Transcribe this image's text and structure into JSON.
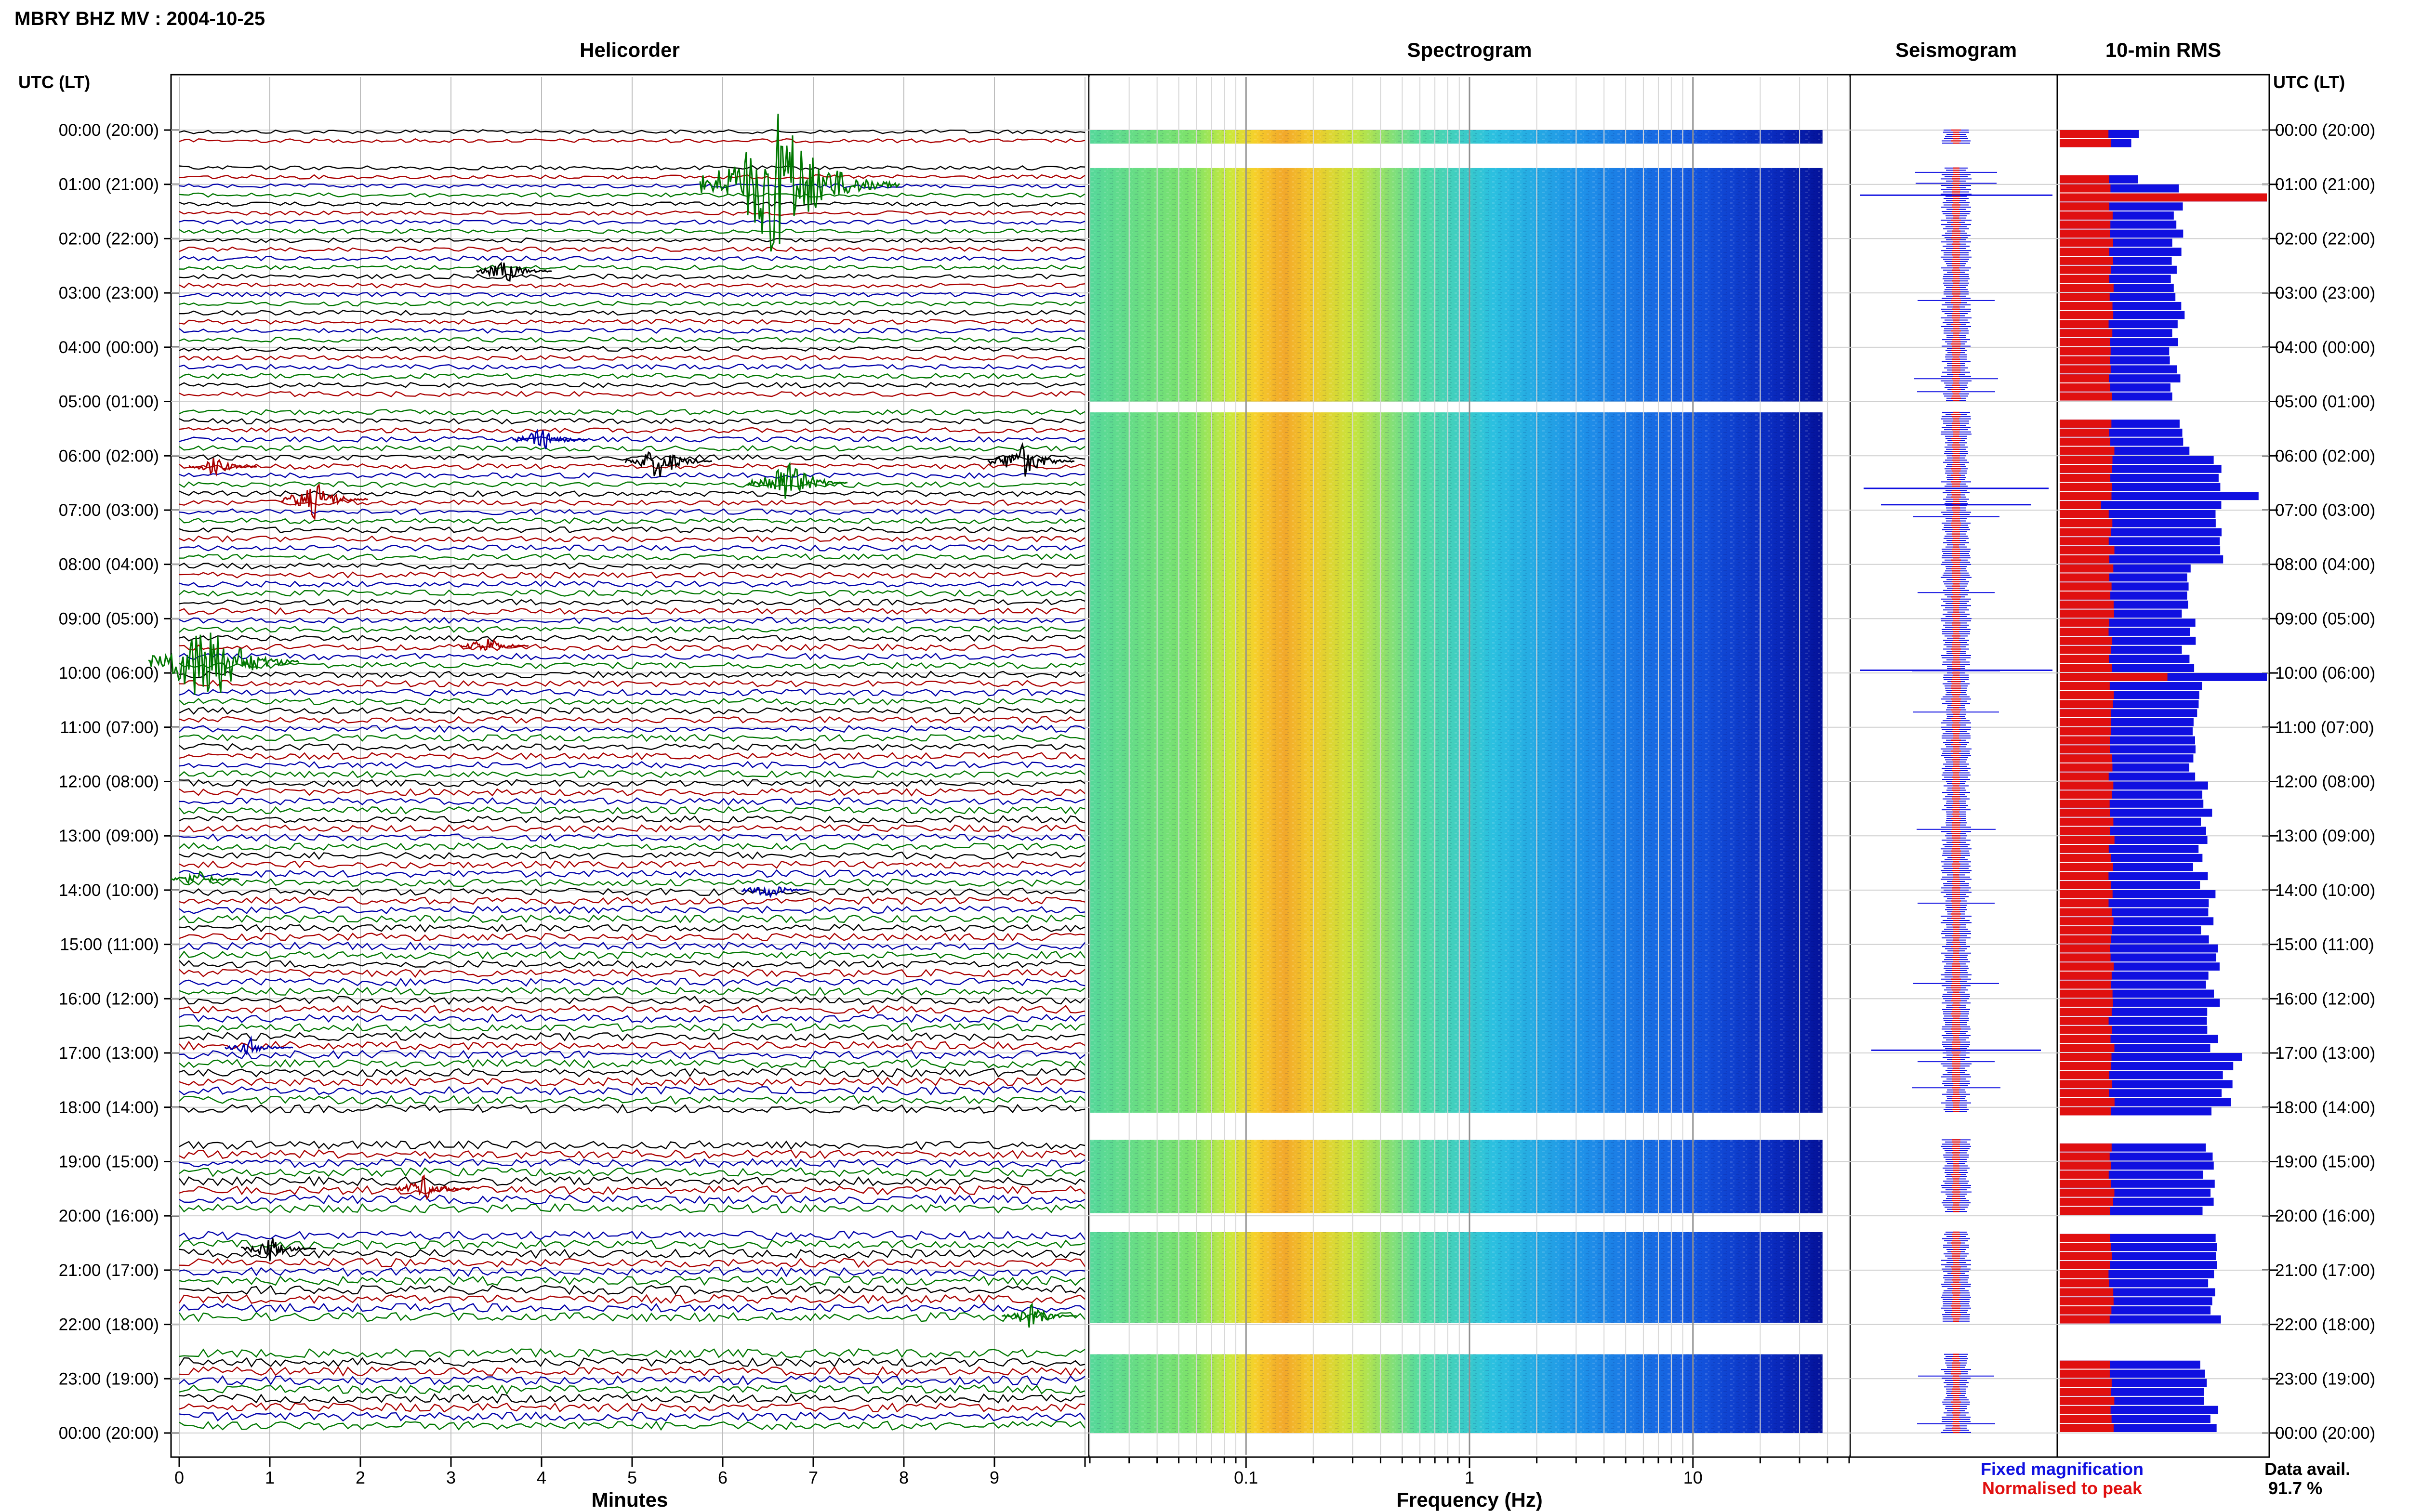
{
  "title": "MBRY BHZ MV : 2004-10-25",
  "panels": {
    "helicorder": "Helicorder",
    "spectrogram": "Spectrogram",
    "seismogram": "Seismogram",
    "rms": "10-min RMS"
  },
  "time_axis": {
    "label": "UTC (LT)",
    "ticks": [
      "00:00 (20:00)",
      "01:00 (21:00)",
      "02:00 (22:00)",
      "03:00 (23:00)",
      "04:00 (00:00)",
      "05:00 (01:00)",
      "06:00 (02:00)",
      "07:00 (03:00)",
      "08:00 (04:00)",
      "09:00 (05:00)",
      "10:00 (06:00)",
      "11:00 (07:00)",
      "12:00 (08:00)",
      "13:00 (09:00)",
      "14:00 (10:00)",
      "15:00 (11:00)",
      "16:00 (12:00)",
      "17:00 (13:00)",
      "18:00 (14:00)",
      "19:00 (15:00)",
      "20:00 (16:00)",
      "21:00 (17:00)",
      "22:00 (18:00)",
      "23:00 (19:00)",
      "00:00 (20:00)"
    ]
  },
  "legend": {
    "fixed": "Fixed magnification",
    "normalised": "Normalised to peak",
    "fixed_color": "#1010e0",
    "normalised_color": "#e01010"
  },
  "data_availability": {
    "label": "Data avail.",
    "value": "91.7 %"
  },
  "chart_data": [
    {
      "type": "line",
      "panel": "Helicorder",
      "xlabel": "Minutes",
      "xlim": [
        0,
        10
      ],
      "x_ticks": [
        "0",
        "1",
        "2",
        "3",
        "4",
        "5",
        "6",
        "7",
        "8",
        "9"
      ],
      "ylim_hours": [
        0,
        24
      ],
      "rows_per_hour": 6,
      "trace_colors": [
        "#000000",
        "#aa0000",
        "#0000aa",
        "#007700"
      ],
      "gaps_hours": [
        [
          0.25,
          0.7
        ],
        [
          5.0,
          5.2
        ],
        [
          18.1,
          18.6
        ],
        [
          19.95,
          20.3
        ],
        [
          21.97,
          22.55
        ]
      ],
      "events": [
        {
          "hour": 1.0,
          "minute": 6.6,
          "amplitude": 12,
          "color": "#007700"
        },
        {
          "hour": 2.6,
          "minute": 3.6,
          "amplitude": 2,
          "color": "#000000"
        },
        {
          "hour": 5.7,
          "minute": 4.0,
          "amplitude": 2,
          "color": "#0000aa"
        },
        {
          "hour": 6.1,
          "minute": 5.3,
          "amplitude": 3,
          "color": "#000000"
        },
        {
          "hour": 6.1,
          "minute": 9.3,
          "amplitude": 3,
          "color": "#000000"
        },
        {
          "hour": 6.2,
          "minute": 0.4,
          "amplitude": 1.5,
          "color": "#aa0000"
        },
        {
          "hour": 6.5,
          "minute": 6.7,
          "amplitude": 4,
          "color": "#007700"
        },
        {
          "hour": 6.8,
          "minute": 1.5,
          "amplitude": 3,
          "color": "#aa0000"
        },
        {
          "hour": 9.5,
          "minute": 3.4,
          "amplitude": 1.5,
          "color": "#aa0000"
        },
        {
          "hour": 9.8,
          "minute": 0.3,
          "amplitude": 8,
          "color": "#007700"
        },
        {
          "hour": 13.8,
          "minute": 0.2,
          "amplitude": 1.5,
          "color": "#007700"
        },
        {
          "hour": 14.0,
          "minute": 6.5,
          "amplitude": 1.5,
          "color": "#0000aa"
        },
        {
          "hour": 16.9,
          "minute": 0.8,
          "amplitude": 1.5,
          "color": "#0000aa"
        },
        {
          "hour": 19.5,
          "minute": 2.7,
          "amplitude": 2,
          "color": "#aa0000"
        },
        {
          "hour": 20.6,
          "minute": 1.0,
          "amplitude": 2,
          "color": "#000000"
        },
        {
          "hour": 21.85,
          "minute": 9.4,
          "amplitude": 2,
          "color": "#007700"
        }
      ]
    },
    {
      "type": "heatmap",
      "panel": "Spectrogram",
      "xlabel": "Frequency (Hz)",
      "x_scale": "log",
      "xlim": [
        0.02,
        50
      ],
      "x_ticks": [
        "0.1",
        "1",
        "10"
      ],
      "peak_band_hz": [
        0.12,
        0.3
      ],
      "data_end_hz": 38,
      "gaps_hours": [
        [
          0.25,
          0.7
        ],
        [
          5.0,
          5.2
        ],
        [
          18.1,
          18.6
        ],
        [
          19.95,
          20.3
        ],
        [
          21.97,
          22.55
        ]
      ]
    },
    {
      "type": "line",
      "panel": "Seismogram",
      "series": [
        {
          "name": "Fixed magnification",
          "color": "#1010e0"
        },
        {
          "name": "Normalised to peak",
          "color": "#e01010"
        }
      ],
      "gaps_hours": [
        [
          0.25,
          0.7
        ],
        [
          5.0,
          5.2
        ],
        [
          18.1,
          18.6
        ],
        [
          19.95,
          20.3
        ],
        [
          21.97,
          22.55
        ]
      ]
    },
    {
      "type": "bar",
      "panel": "10-min RMS",
      "interval_minutes": 10,
      "normalised_max": 1.0,
      "rms_fixed_hourly": [
        0.38,
        0.58,
        0.56,
        0.58,
        0.55,
        0.6,
        0.75,
        0.75,
        0.62,
        0.62,
        0.65,
        0.66,
        0.72,
        0.68,
        0.72,
        0.74,
        0.74,
        0.8,
        0.71,
        0.71,
        0.73,
        0.74,
        0.71,
        0.73,
        0.74
      ],
      "peaks": [
        {
          "hour": 1.2,
          "fixed": 1.0,
          "normalised": 1.0
        },
        {
          "hour": 6.6,
          "fixed": 0.96,
          "normalised": 0.25
        },
        {
          "hour": 6.9,
          "fixed": 0.78,
          "normalised": 0.2
        },
        {
          "hour": 9.95,
          "fixed": 1.0,
          "normalised": 0.52
        },
        {
          "hour": 16.95,
          "fixed": 0.88,
          "normalised": 0.25
        }
      ],
      "normalised_typical": 0.25,
      "gaps_hours": [
        [
          0.25,
          0.7
        ],
        [
          5.0,
          5.2
        ],
        [
          18.1,
          18.6
        ],
        [
          19.95,
          20.3
        ],
        [
          21.97,
          22.55
        ]
      ]
    }
  ]
}
